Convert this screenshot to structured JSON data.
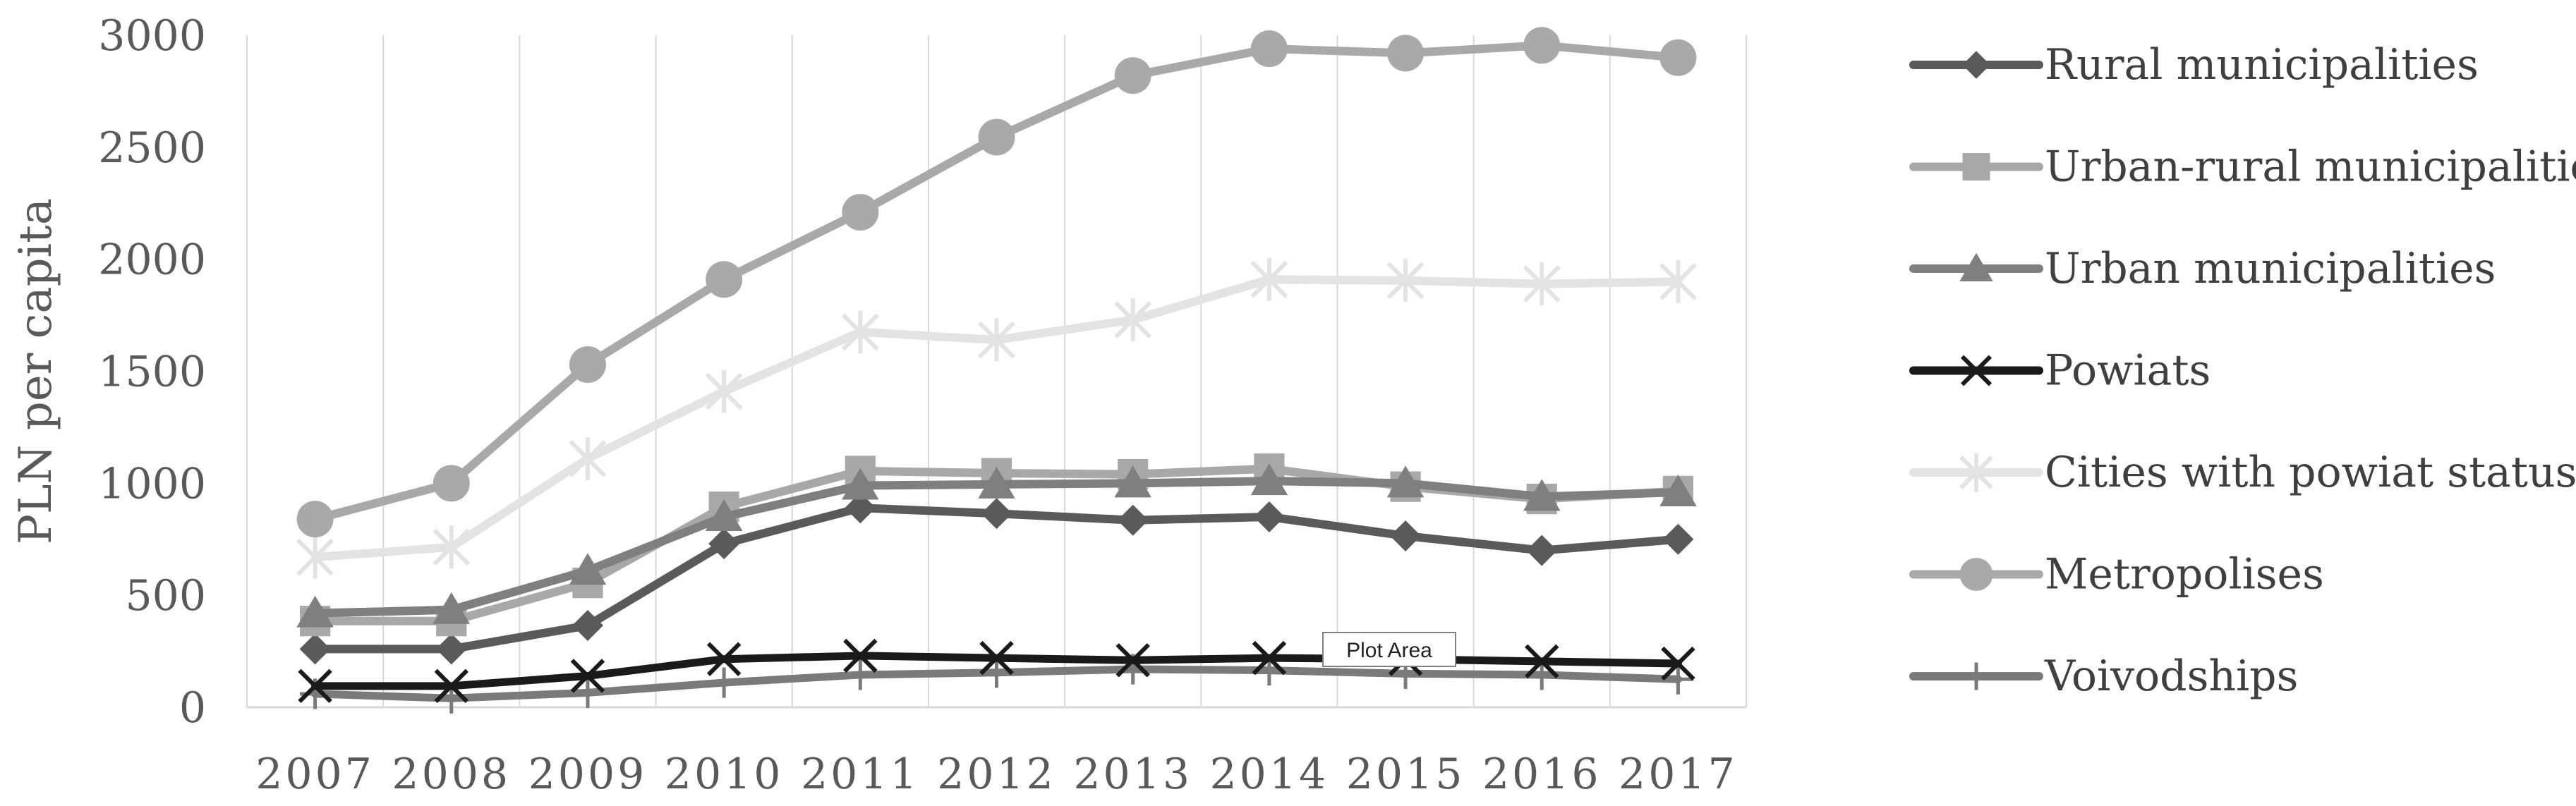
{
  "chart_data": {
    "type": "line",
    "title": "",
    "xlabel": "",
    "ylabel": "PLN per capita",
    "x": [
      "2007",
      "2008",
      "2009",
      "2010",
      "2011",
      "2012",
      "2013",
      "2014",
      "2015",
      "2016",
      "2017"
    ],
    "ylim": [
      0,
      3000
    ],
    "yticks": [
      0,
      500,
      1000,
      1500,
      2000,
      2500,
      3000
    ],
    "grid": "vertical",
    "legend_position": "right",
    "series": [
      {
        "name": "Rural municipalities",
        "marker": "diamond",
        "color": "#5a5a5a",
        "values": [
          260,
          260,
          365,
          730,
          890,
          865,
          835,
          850,
          765,
          700,
          750
        ]
      },
      {
        "name": "Urban-rural municipalities",
        "marker": "square",
        "color": "#a8a8a8",
        "values": [
          385,
          385,
          555,
          895,
          1055,
          1045,
          1040,
          1065,
          985,
          930,
          965
        ]
      },
      {
        "name": "Urban municipalities",
        "marker": "triangle",
        "color": "#7f7f7f",
        "values": [
          420,
          435,
          610,
          850,
          990,
          995,
          1000,
          1010,
          1000,
          940,
          960
        ]
      },
      {
        "name": "Powiats",
        "marker": "x",
        "color": "#1a1a1a",
        "values": [
          95,
          95,
          140,
          215,
          230,
          220,
          210,
          220,
          215,
          205,
          195
        ]
      },
      {
        "name": "Cities with powiat status",
        "marker": "star",
        "color": "#e3e3e3",
        "values": [
          670,
          715,
          1110,
          1410,
          1675,
          1640,
          1730,
          1910,
          1905,
          1890,
          1900
        ]
      },
      {
        "name": "Metropolises",
        "marker": "circle",
        "color": "#a9a9a9",
        "values": [
          840,
          1000,
          1530,
          1910,
          2210,
          2545,
          2820,
          2940,
          2920,
          2955,
          2900
        ]
      },
      {
        "name": "Voivodships",
        "marker": "plus",
        "color": "#7a7a7a",
        "values": [
          60,
          40,
          65,
          110,
          145,
          155,
          170,
          165,
          150,
          145,
          125
        ]
      }
    ],
    "annotation": "Plot Area"
  }
}
